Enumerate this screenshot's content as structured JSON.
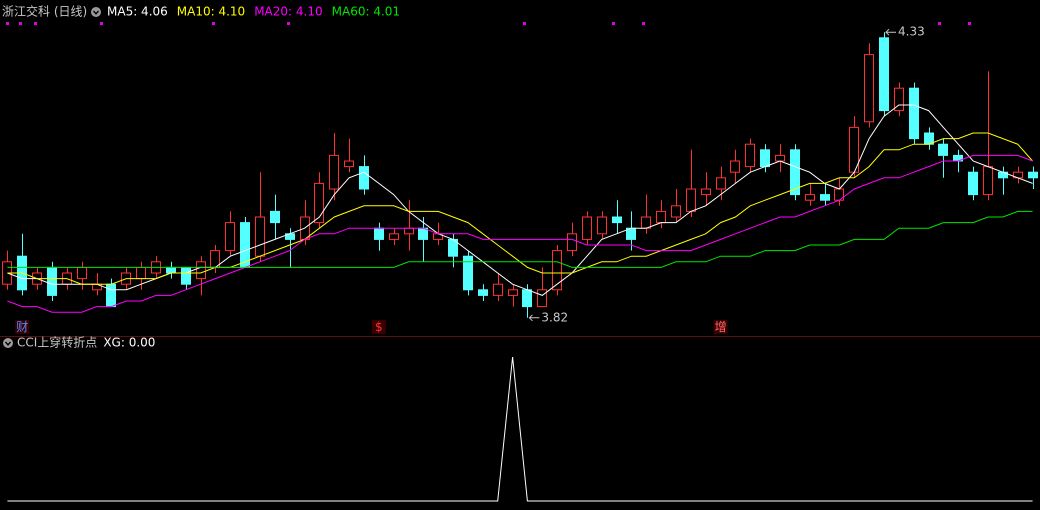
{
  "chart_data": [
    {
      "type": "candlestick",
      "title": "浙江交科 (日线)",
      "open": [
        3.88,
        3.93,
        3.88,
        3.91,
        3.88,
        3.89,
        3.87,
        3.88,
        3.88,
        3.89,
        3.9,
        3.91,
        3.91,
        3.89,
        3.91,
        3.94,
        3.99,
        3.93,
        4.01,
        3.97,
        3.96,
        3.99,
        4.05,
        4.09,
        4.09,
        3.98,
        3.96,
        3.97,
        3.98,
        3.96,
        3.96,
        3.93,
        3.87,
        3.86,
        3.86,
        3.87,
        3.84,
        3.87,
        3.94,
        3.96,
        3.97,
        4.0,
        3.98,
        3.98,
        3.99,
        4.0,
        4.01,
        4.04,
        4.05,
        4.08,
        4.09,
        4.12,
        4.1,
        4.12,
        4.03,
        4.04,
        4.03,
        4.08,
        4.17,
        4.32,
        4.19,
        4.23,
        4.15,
        4.13,
        4.11,
        4.08,
        4.04,
        4.08,
        4.07,
        4.08
      ],
      "close": [
        3.92,
        3.87,
        3.9,
        3.86,
        3.9,
        3.91,
        3.88,
        3.84,
        3.9,
        3.91,
        3.92,
        3.9,
        3.88,
        3.92,
        3.94,
        3.99,
        3.91,
        4.0,
        3.99,
        3.96,
        4.0,
        4.06,
        4.11,
        4.1,
        4.05,
        3.96,
        3.97,
        3.98,
        3.96,
        3.97,
        3.93,
        3.87,
        3.86,
        3.88,
        3.87,
        3.84,
        3.87,
        3.94,
        3.97,
        4.0,
        4.0,
        3.99,
        3.96,
        4.0,
        4.01,
        4.02,
        4.05,
        4.05,
        4.07,
        4.1,
        4.13,
        4.09,
        4.11,
        4.04,
        4.04,
        4.03,
        4.05,
        4.16,
        4.29,
        4.19,
        4.23,
        4.14,
        4.13,
        4.11,
        4.1,
        4.04,
        4.09,
        4.07,
        4.08,
        4.07
      ],
      "high": [
        3.94,
        3.97,
        3.91,
        3.92,
        3.91,
        3.92,
        3.9,
        3.89,
        3.91,
        3.92,
        3.93,
        3.92,
        3.91,
        3.93,
        3.95,
        4.01,
        4.0,
        4.08,
        4.04,
        3.98,
        4.03,
        4.08,
        4.15,
        4.14,
        4.11,
        3.99,
        3.98,
        4.03,
        4.0,
        3.99,
        3.97,
        3.94,
        3.88,
        3.9,
        3.88,
        3.88,
        3.91,
        3.95,
        3.99,
        4.01,
        4.01,
        4.03,
        4.01,
        4.04,
        4.03,
        4.05,
        4.12,
        4.08,
        4.09,
        4.12,
        4.14,
        4.13,
        4.13,
        4.13,
        4.06,
        4.06,
        4.07,
        4.18,
        4.31,
        4.33,
        4.24,
        4.24,
        4.16,
        4.14,
        4.12,
        4.09,
        4.26,
        4.09,
        4.09,
        4.09
      ],
      "low": [
        3.87,
        3.86,
        3.87,
        3.85,
        3.87,
        3.87,
        3.86,
        3.84,
        3.87,
        3.87,
        3.89,
        3.89,
        3.87,
        3.86,
        3.9,
        3.93,
        3.91,
        3.92,
        3.96,
        3.91,
        3.95,
        3.98,
        4.03,
        4.08,
        4.04,
        3.94,
        3.95,
        3.94,
        3.92,
        3.95,
        3.91,
        3.86,
        3.85,
        3.85,
        3.84,
        3.82,
        3.84,
        3.86,
        3.93,
        3.95,
        3.96,
        3.97,
        3.94,
        3.97,
        3.98,
        3.99,
        4.0,
        4.02,
        4.03,
        4.06,
        4.08,
        4.08,
        4.08,
        4.03,
        4.02,
        4.02,
        4.02,
        4.07,
        4.16,
        4.18,
        4.18,
        4.13,
        4.12,
        4.07,
        4.08,
        4.03,
        4.03,
        4.04,
        4.06,
        4.05
      ],
      "up_color": "#ff3232",
      "down_color": "#54ffff",
      "series": [
        {
          "name": "MA5: 4.06",
          "color": "#ffffff",
          "values": [
            3.9,
            3.89,
            3.89,
            3.88,
            3.88,
            3.88,
            3.88,
            3.87,
            3.87,
            3.88,
            3.89,
            3.9,
            3.9,
            3.91,
            3.91,
            3.93,
            3.94,
            3.95,
            3.96,
            3.97,
            3.98,
            4.0,
            4.04,
            4.07,
            4.08,
            4.06,
            4.04,
            4.01,
            3.99,
            3.97,
            3.96,
            3.94,
            3.92,
            3.9,
            3.88,
            3.87,
            3.86,
            3.88,
            3.9,
            3.93,
            3.96,
            3.97,
            3.98,
            3.98,
            3.99,
            3.99,
            4.01,
            4.02,
            4.04,
            4.06,
            4.08,
            4.09,
            4.1,
            4.09,
            4.08,
            4.06,
            4.05,
            4.08,
            4.14,
            4.18,
            4.2,
            4.2,
            4.19,
            4.16,
            4.13,
            4.1,
            4.09,
            4.08,
            4.07,
            4.06
          ]
        },
        {
          "name": "MA10: 4.10",
          "color": "#ffff00",
          "values": [
            3.9,
            3.9,
            3.89,
            3.89,
            3.89,
            3.88,
            3.88,
            3.88,
            3.89,
            3.89,
            3.89,
            3.9,
            3.9,
            3.9,
            3.91,
            3.91,
            3.92,
            3.93,
            3.94,
            3.95,
            3.96,
            3.98,
            4.0,
            4.01,
            4.02,
            4.02,
            4.02,
            4.01,
            4.01,
            4.01,
            4.0,
            3.99,
            3.97,
            3.95,
            3.93,
            3.91,
            3.9,
            3.9,
            3.9,
            3.91,
            3.92,
            3.92,
            3.93,
            3.93,
            3.94,
            3.95,
            3.96,
            3.97,
            3.99,
            4.0,
            4.02,
            4.03,
            4.04,
            4.05,
            4.06,
            4.06,
            4.07,
            4.07,
            4.09,
            4.12,
            4.12,
            4.13,
            4.13,
            4.14,
            4.14,
            4.15,
            4.15,
            4.14,
            4.13,
            4.1
          ]
        },
        {
          "name": "MA20: 4.10",
          "color": "#ff00ff",
          "values": [
            3.85,
            3.84,
            3.84,
            3.83,
            3.83,
            3.83,
            3.84,
            3.84,
            3.85,
            3.85,
            3.86,
            3.86,
            3.87,
            3.88,
            3.89,
            3.9,
            3.91,
            3.92,
            3.93,
            3.94,
            3.96,
            3.97,
            3.97,
            3.98,
            3.98,
            3.98,
            3.98,
            3.98,
            3.98,
            3.97,
            3.97,
            3.97,
            3.96,
            3.96,
            3.96,
            3.96,
            3.96,
            3.96,
            3.96,
            3.95,
            3.95,
            3.95,
            3.95,
            3.94,
            3.94,
            3.94,
            3.94,
            3.95,
            3.96,
            3.97,
            3.98,
            3.99,
            4.0,
            4.0,
            4.01,
            4.02,
            4.03,
            4.05,
            4.06,
            4.07,
            4.07,
            4.08,
            4.09,
            4.1,
            4.1,
            4.11,
            4.11,
            4.11,
            4.11,
            4.1
          ]
        },
        {
          "name": "MA60: 4.01",
          "color": "#00e600",
          "values": [
            3.91,
            3.91,
            3.91,
            3.91,
            3.91,
            3.91,
            3.91,
            3.91,
            3.91,
            3.91,
            3.91,
            3.91,
            3.91,
            3.91,
            3.91,
            3.91,
            3.91,
            3.91,
            3.91,
            3.91,
            3.91,
            3.91,
            3.91,
            3.91,
            3.91,
            3.91,
            3.91,
            3.92,
            3.92,
            3.92,
            3.92,
            3.92,
            3.92,
            3.92,
            3.92,
            3.92,
            3.92,
            3.92,
            3.91,
            3.91,
            3.91,
            3.91,
            3.91,
            3.91,
            3.91,
            3.92,
            3.92,
            3.92,
            3.93,
            3.93,
            3.93,
            3.94,
            3.94,
            3.94,
            3.95,
            3.95,
            3.95,
            3.96,
            3.96,
            3.96,
            3.98,
            3.98,
            3.98,
            3.99,
            3.99,
            3.99,
            4.0,
            4.0,
            4.01,
            4.01
          ]
        }
      ],
      "high_label": 4.33,
      "low_label": 3.82,
      "events": [
        null,
        "财",
        null,
        null,
        null,
        null,
        null,
        null,
        null,
        null,
        null,
        null,
        null,
        null,
        null,
        null,
        null,
        null,
        null,
        null,
        null,
        null,
        null,
        null,
        null,
        "$",
        null,
        null,
        null,
        null,
        null,
        null,
        null,
        null,
        null,
        null,
        null,
        null,
        null,
        null,
        null,
        null,
        null,
        null,
        null,
        null,
        null,
        null,
        "增",
        null,
        null,
        null,
        null,
        null,
        null,
        null,
        null,
        null,
        null,
        null,
        null,
        null,
        null,
        null,
        null,
        null,
        null,
        null,
        null,
        null
      ],
      "event_colors": {
        "财": "#4d8dff",
        "$": "#ff3232",
        "增": "#ff6a6a"
      },
      "ylim": [
        3.8,
        4.35
      ]
    },
    {
      "type": "line",
      "title": "CCI上穿转折点",
      "series": [
        {
          "name": "XG: 0.00",
          "color": "#ffffff",
          "values": [
            0,
            0,
            0,
            0,
            0,
            0,
            0,
            0,
            0,
            0,
            0,
            0,
            0,
            0,
            0,
            0,
            0,
            0,
            0,
            0,
            0,
            0,
            0,
            0,
            0,
            0,
            0,
            0,
            0,
            0,
            0,
            0,
            0,
            0,
            1,
            0,
            0,
            0,
            0,
            0,
            0,
            0,
            0,
            0,
            0,
            0,
            0,
            0,
            0,
            0,
            0,
            0,
            0,
            0,
            0,
            0,
            0,
            0,
            0,
            0,
            0,
            0,
            0,
            0,
            0,
            0,
            0,
            0,
            0,
            0
          ]
        }
      ],
      "ylim": [
        0,
        1
      ]
    }
  ]
}
